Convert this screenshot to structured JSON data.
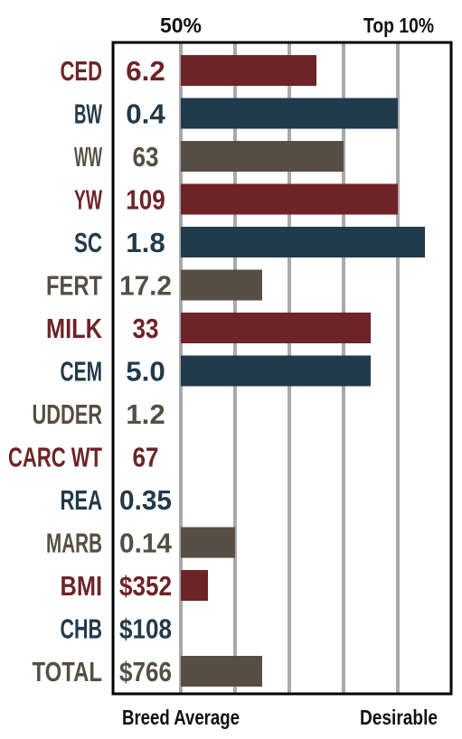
{
  "chart_data": {
    "type": "bar",
    "orientation": "horizontal",
    "top_labels": [
      "50%",
      "Top 10%"
    ],
    "bottom_labels": [
      "Breed Average",
      "Desirable"
    ],
    "rows": [
      {
        "label": "CED",
        "value_text": "6.2",
        "bar": 2.5,
        "color": "#6e2326"
      },
      {
        "label": "BW",
        "value_text": "0.4",
        "bar": 4.0,
        "color": "#213a4c"
      },
      {
        "label": "WW",
        "value_text": "63",
        "bar": 3.0,
        "color": "#564e42"
      },
      {
        "label": "YW",
        "value_text": "109",
        "bar": 4.0,
        "color": "#6e2326"
      },
      {
        "label": "SC",
        "value_text": "1.8",
        "bar": 4.5,
        "color": "#213a4c"
      },
      {
        "label": "FERT",
        "value_text": "17.2",
        "bar": 1.5,
        "color": "#564e42"
      },
      {
        "label": "MILK",
        "value_text": "33",
        "bar": 3.5,
        "color": "#6e2326"
      },
      {
        "label": "CEM",
        "value_text": "5.0",
        "bar": 3.5,
        "color": "#213a4c"
      },
      {
        "label": "UDDER",
        "value_text": "1.2",
        "bar": 0,
        "color": "#564e42"
      },
      {
        "label": "CARC WT",
        "value_text": "67",
        "bar": 0,
        "color": "#6e2326"
      },
      {
        "label": "REA",
        "value_text": "0.35",
        "bar": 0,
        "color": "#213a4c"
      },
      {
        "label": "MARB",
        "value_text": "0.14",
        "bar": 1.0,
        "color": "#564e42"
      },
      {
        "label": "BMI",
        "value_text": "$352",
        "bar": 0.5,
        "color": "#6e2326"
      },
      {
        "label": "CHB",
        "value_text": "$108",
        "bar": 0,
        "color": "#213a4c"
      },
      {
        "label": "TOTAL",
        "value_text": "$766",
        "bar": 1.5,
        "color": "#564e42"
      }
    ],
    "grid": true
  }
}
